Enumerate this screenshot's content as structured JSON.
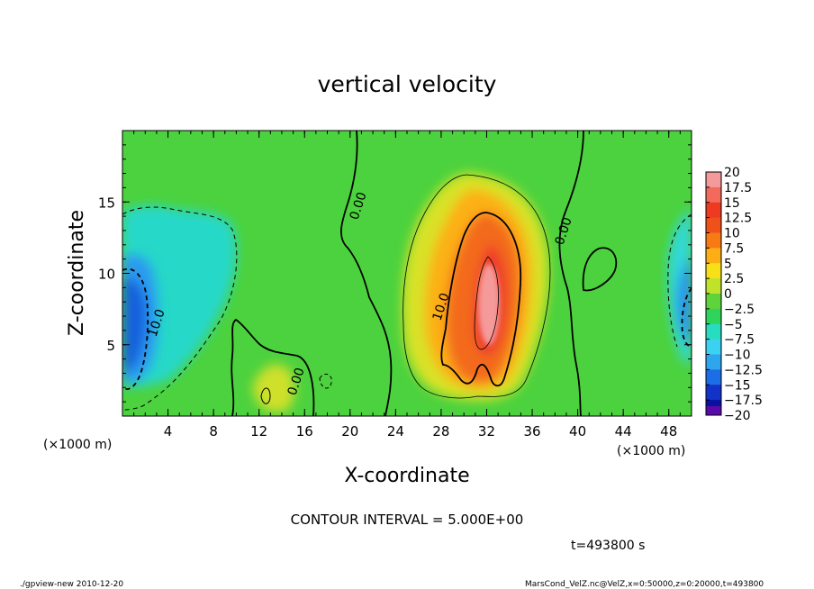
{
  "chart_data": {
    "type": "heatmap",
    "title": "vertical velocity",
    "xlabel": "X-coordinate",
    "ylabel": "Z-coordinate",
    "x_unit_label": "(×1000 m)",
    "y_unit_label": "(×1000 m)",
    "xlim": [
      0,
      50
    ],
    "ylim": [
      0,
      20
    ],
    "x_ticks": [
      4,
      8,
      12,
      16,
      20,
      24,
      28,
      32,
      36,
      40,
      44,
      48
    ],
    "y_ticks": [
      5,
      10,
      15
    ],
    "colorbar": {
      "labels": [
        "20",
        "17.5",
        "15",
        "12.5",
        "10",
        "7.5",
        "5",
        "2.5",
        "0",
        "−2.5",
        "−5",
        "−7.5",
        "−10",
        "−12.5",
        "−15",
        "−17.5",
        "−20"
      ],
      "colors": [
        "#f59a9a",
        "#f26a5c",
        "#ef3a22",
        "#f0501a",
        "#f77a14",
        "#fcae14",
        "#f8e018",
        "#bfe22a",
        "#5fd43a",
        "#2ed55a",
        "#28dcc0",
        "#3ad2f0",
        "#2ea6ee",
        "#1c6ee6",
        "#1232c8",
        "#0a10a0",
        "#5a0aa8"
      ]
    },
    "contour_labels": [
      {
        "text": "0.00",
        "x": 20.7,
        "z": 14.8,
        "angle": -72
      },
      {
        "text": "0.00",
        "x": 38.3,
        "z": 12.9,
        "angle": -72
      },
      {
        "text": "0.00",
        "x": 15.4,
        "z": 2.2,
        "angle": -72
      },
      {
        "text": "10.0",
        "x": 27.7,
        "z": 7.3,
        "angle": -72
      },
      {
        "text": "10.0",
        "x": 2.3,
        "z": 6.5,
        "angle": -72
      }
    ],
    "features": [
      {
        "kind": "updraft",
        "x": 31.5,
        "z": 7.5,
        "peak": 20
      },
      {
        "kind": "downdraft",
        "x": 1.8,
        "z": 6.5,
        "peak": -12.5
      },
      {
        "kind": "downdraft",
        "x": 48.5,
        "z": 8,
        "peak": -10
      }
    ]
  },
  "contour_interval_text": "CONTOUR INTERVAL = 5.000E+00",
  "time_text": "t=493800  s",
  "footer_left": "./gpview-new   2010-12-20",
  "footer_right": "MarsCond_VelZ.nc@VelZ,x=0:50000,z=0:20000,t=493800"
}
